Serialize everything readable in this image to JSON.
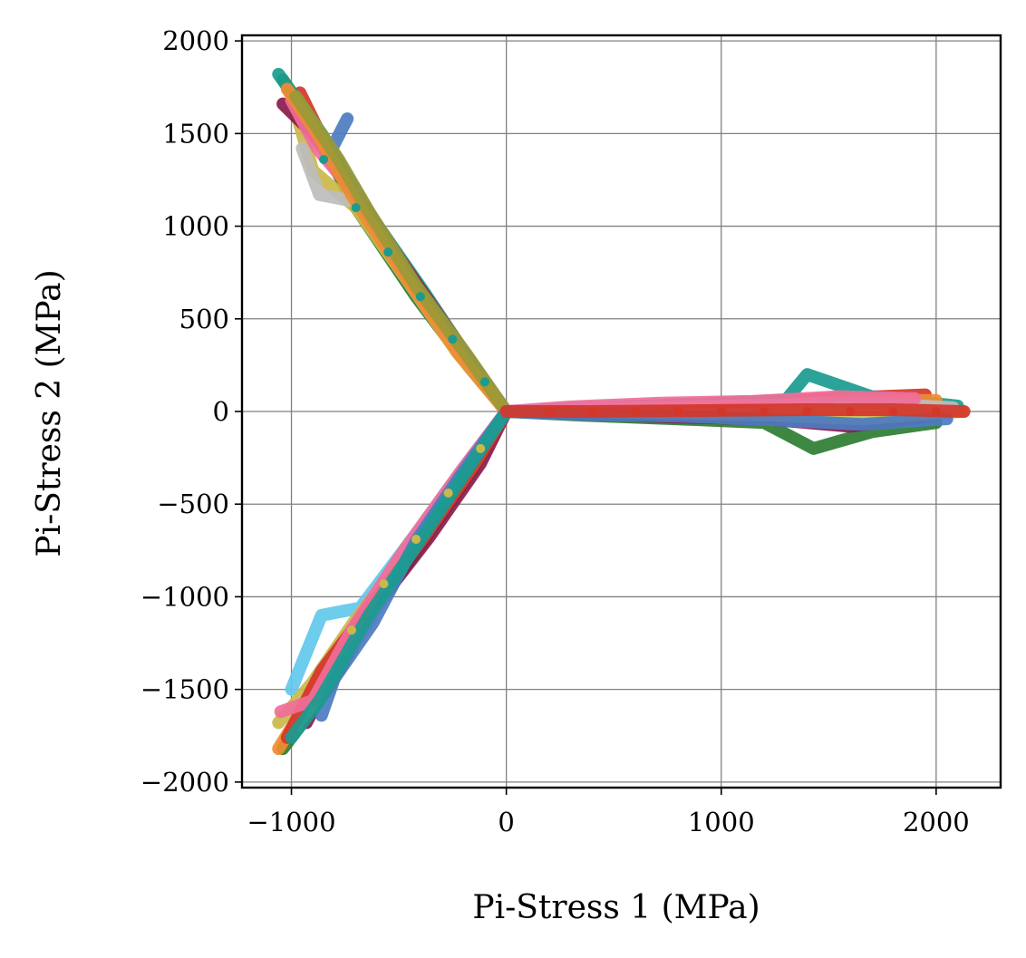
{
  "chart_data": {
    "type": "line",
    "title": "",
    "xlabel": "Pi-Stress 1 (MPa)",
    "ylabel": "Pi-Stress 2 (MPa)",
    "xlim": [
      -1230,
      2300
    ],
    "ylim": [
      -2030,
      2030
    ],
    "grid": true,
    "grid_color": "#808080",
    "x_ticks": [
      {
        "value": -1000,
        "label": "−1000"
      },
      {
        "value": 0,
        "label": "0"
      },
      {
        "value": 1000,
        "label": "1000"
      },
      {
        "value": 2000,
        "label": "2000"
      }
    ],
    "y_ticks": [
      {
        "value": 2000,
        "label": "2000"
      },
      {
        "value": 1500,
        "label": "1500"
      },
      {
        "value": 1000,
        "label": "1000"
      },
      {
        "value": 500,
        "label": "500"
      },
      {
        "value": 0,
        "label": "0"
      },
      {
        "value": -500,
        "label": "−500"
      },
      {
        "value": -1000,
        "label": "−1000"
      },
      {
        "value": -1500,
        "label": "−1500"
      },
      {
        "value": -2000,
        "label": "−2000"
      }
    ],
    "series": [
      {
        "name": "path-1",
        "color": "#2e7d32",
        "lobe": "upper-left",
        "points": [
          [
            0,
            0
          ],
          [
            -180,
            250
          ],
          [
            -420,
            620
          ],
          [
            -700,
            1100
          ],
          [
            -880,
            1500
          ],
          [
            -1040,
            1790
          ]
        ]
      },
      {
        "name": "path-2",
        "color": "#d4362a",
        "lobe": "upper-left",
        "points": [
          [
            0,
            0
          ],
          [
            -200,
            290
          ],
          [
            -430,
            700
          ],
          [
            -640,
            1060
          ],
          [
            -850,
            1460
          ],
          [
            -960,
            1720
          ]
        ]
      },
      {
        "name": "path-3",
        "color": "#1a9b8f",
        "lobe": "upper-left",
        "points": [
          [
            0,
            0
          ],
          [
            -150,
            240
          ],
          [
            -380,
            640
          ],
          [
            -620,
            1040
          ],
          [
            -860,
            1500
          ],
          [
            -1060,
            1820
          ]
        ]
      },
      {
        "name": "path-4",
        "color": "#cbb84a",
        "lobe": "upper-left",
        "points": [
          [
            0,
            0
          ],
          [
            -230,
            320
          ],
          [
            -480,
            740
          ],
          [
            -700,
            1100
          ],
          [
            -900,
            1300
          ],
          [
            -980,
            1620
          ]
        ]
      },
      {
        "name": "path-5",
        "color": "#8a1a4a",
        "lobe": "upper-left",
        "points": [
          [
            0,
            0
          ],
          [
            -170,
            280
          ],
          [
            -400,
            660
          ],
          [
            -660,
            1100
          ],
          [
            -900,
            1500
          ],
          [
            -1040,
            1660
          ]
        ]
      },
      {
        "name": "path-6",
        "color": "#f06e9a",
        "lobe": "upper-left",
        "points": [
          [
            0,
            0
          ],
          [
            -210,
            300
          ],
          [
            -460,
            720
          ],
          [
            -720,
            1200
          ],
          [
            -880,
            1420
          ],
          [
            -1000,
            1680
          ]
        ]
      },
      {
        "name": "path-7",
        "color": "#bdbdbd",
        "lobe": "upper-left",
        "points": [
          [
            0,
            0
          ],
          [
            -190,
            270
          ],
          [
            -440,
            690
          ],
          [
            -690,
            1130
          ],
          [
            -870,
            1170
          ],
          [
            -950,
            1420
          ]
        ]
      },
      {
        "name": "path-8",
        "color": "#4c7cc0",
        "lobe": "upper-left",
        "points": [
          [
            0,
            0
          ],
          [
            -160,
            260
          ],
          [
            -410,
            650
          ],
          [
            -650,
            1080
          ],
          [
            -820,
            1400
          ],
          [
            -740,
            1580
          ]
        ]
      },
      {
        "name": "path-9",
        "color": "#f28b30",
        "lobe": "upper-left",
        "points": [
          [
            0,
            0
          ],
          [
            -220,
            310
          ],
          [
            -470,
            730
          ],
          [
            -710,
            1150
          ],
          [
            -890,
            1520
          ],
          [
            -1020,
            1740
          ]
        ]
      },
      {
        "name": "path-10",
        "color": "#9a9a35",
        "lobe": "upper-left",
        "points": [
          [
            0,
            0
          ],
          [
            -180,
            300
          ],
          [
            -420,
            680
          ],
          [
            -640,
            1080
          ],
          [
            -780,
            1360
          ],
          [
            -980,
            1700
          ]
        ]
      },
      {
        "name": "path-11",
        "color": "#2e7d32",
        "lobe": "lower-left",
        "points": [
          [
            0,
            0
          ],
          [
            -150,
            -300
          ],
          [
            -400,
            -720
          ],
          [
            -620,
            -1080
          ],
          [
            -820,
            -1480
          ],
          [
            -1040,
            -1820
          ]
        ]
      },
      {
        "name": "path-12",
        "color": "#62c8ea",
        "lobe": "lower-left",
        "points": [
          [
            0,
            0
          ],
          [
            -170,
            -260
          ],
          [
            -420,
            -660
          ],
          [
            -680,
            -1060
          ],
          [
            -860,
            -1100
          ],
          [
            -1000,
            -1500
          ]
        ]
      },
      {
        "name": "path-13",
        "color": "#cbb84a",
        "lobe": "lower-left",
        "points": [
          [
            0,
            0
          ],
          [
            -200,
            -330
          ],
          [
            -450,
            -750
          ],
          [
            -700,
            -1120
          ],
          [
            -900,
            -1460
          ],
          [
            -1060,
            -1680
          ]
        ]
      },
      {
        "name": "path-14",
        "color": "#8a1a4a",
        "lobe": "lower-left",
        "points": [
          [
            0,
            0
          ],
          [
            -120,
            -280
          ],
          [
            -360,
            -680
          ],
          [
            -600,
            -1040
          ],
          [
            -760,
            -1300
          ],
          [
            -930,
            -1680
          ]
        ]
      },
      {
        "name": "path-15",
        "color": "#f28b30",
        "lobe": "lower-left",
        "points": [
          [
            0,
            0
          ],
          [
            -160,
            -300
          ],
          [
            -410,
            -710
          ],
          [
            -660,
            -1110
          ],
          [
            -880,
            -1480
          ],
          [
            -1060,
            -1820
          ]
        ]
      },
      {
        "name": "path-16",
        "color": "#bdbdbd",
        "lobe": "lower-left",
        "points": [
          [
            0,
            0
          ],
          [
            -190,
            -310
          ],
          [
            -430,
            -720
          ],
          [
            -650,
            -1150
          ],
          [
            -850,
            -1500
          ],
          [
            -980,
            -1700
          ]
        ]
      },
      {
        "name": "path-17",
        "color": "#d4362a",
        "lobe": "lower-left",
        "points": [
          [
            0,
            0
          ],
          [
            -140,
            -270
          ],
          [
            -390,
            -690
          ],
          [
            -640,
            -1060
          ],
          [
            -860,
            -1400
          ],
          [
            -1020,
            -1760
          ]
        ]
      },
      {
        "name": "path-18",
        "color": "#f06e9a",
        "lobe": "lower-left",
        "points": [
          [
            0,
            0
          ],
          [
            -210,
            -320
          ],
          [
            -470,
            -740
          ],
          [
            -720,
            -1180
          ],
          [
            -900,
            -1560
          ],
          [
            -1050,
            -1620
          ]
        ]
      },
      {
        "name": "path-19",
        "color": "#4c7cc0",
        "lobe": "lower-left",
        "points": [
          [
            0,
            0
          ],
          [
            -180,
            -290
          ],
          [
            -420,
            -700
          ],
          [
            -620,
            -1140
          ],
          [
            -800,
            -1440
          ],
          [
            -860,
            -1640
          ]
        ]
      },
      {
        "name": "path-20",
        "color": "#1a9b8f",
        "lobe": "lower-left",
        "points": [
          [
            0,
            0
          ],
          [
            -150,
            -260
          ],
          [
            -380,
            -660
          ],
          [
            -640,
            -1100
          ],
          [
            -870,
            -1560
          ],
          [
            -1000,
            -1760
          ]
        ]
      },
      {
        "name": "path-21",
        "color": "#d4362a",
        "lobe": "right",
        "points": [
          [
            0,
            0
          ],
          [
            300,
            0
          ],
          [
            700,
            10
          ],
          [
            1100,
            40
          ],
          [
            1500,
            70
          ],
          [
            1950,
            90
          ]
        ]
      },
      {
        "name": "path-22",
        "color": "#2e7d32",
        "lobe": "right",
        "points": [
          [
            0,
            0
          ],
          [
            350,
            -20
          ],
          [
            800,
            -40
          ],
          [
            1200,
            -60
          ],
          [
            1430,
            -200
          ],
          [
            1700,
            -110
          ],
          [
            2000,
            -60
          ]
        ]
      },
      {
        "name": "path-23",
        "color": "#1a9b8f",
        "lobe": "right",
        "points": [
          [
            0,
            0
          ],
          [
            400,
            20
          ],
          [
            900,
            40
          ],
          [
            1300,
            60
          ],
          [
            1400,
            200
          ],
          [
            1700,
            80
          ],
          [
            2100,
            30
          ]
        ]
      },
      {
        "name": "path-24",
        "color": "#f28b30",
        "lobe": "right",
        "points": [
          [
            0,
            0
          ],
          [
            300,
            10
          ],
          [
            750,
            20
          ],
          [
            1200,
            30
          ],
          [
            1600,
            60
          ],
          [
            2000,
            60
          ]
        ]
      },
      {
        "name": "path-25",
        "color": "#8a1a4a",
        "lobe": "right",
        "points": [
          [
            0,
            0
          ],
          [
            320,
            -10
          ],
          [
            780,
            -30
          ],
          [
            1200,
            -40
          ],
          [
            1600,
            -80
          ],
          [
            2000,
            -20
          ]
        ]
      },
      {
        "name": "path-26",
        "color": "#cbb84a",
        "lobe": "right",
        "points": [
          [
            0,
            0
          ],
          [
            350,
            0
          ],
          [
            820,
            -10
          ],
          [
            1250,
            -20
          ],
          [
            1650,
            -40
          ],
          [
            2120,
            0
          ]
        ]
      },
      {
        "name": "path-27",
        "color": "#bdbdbd",
        "lobe": "right",
        "points": [
          [
            0,
            0
          ],
          [
            380,
            15
          ],
          [
            850,
            25
          ],
          [
            1300,
            35
          ],
          [
            1700,
            45
          ],
          [
            2080,
            20
          ]
        ]
      },
      {
        "name": "path-28",
        "color": "#f06e9a",
        "lobe": "right",
        "points": [
          [
            0,
            0
          ],
          [
            300,
            25
          ],
          [
            720,
            45
          ],
          [
            1150,
            55
          ],
          [
            1550,
            80
          ],
          [
            1900,
            70
          ]
        ]
      },
      {
        "name": "path-29",
        "color": "#4c7cc0",
        "lobe": "right",
        "points": [
          [
            0,
            0
          ],
          [
            340,
            -15
          ],
          [
            800,
            -25
          ],
          [
            1250,
            -45
          ],
          [
            1650,
            -70
          ],
          [
            2050,
            -40
          ]
        ]
      },
      {
        "name": "path-30",
        "color": "#d4362a",
        "lobe": "right",
        "points": [
          [
            0,
            0
          ],
          [
            400,
            0
          ],
          [
            900,
            5
          ],
          [
            1400,
            10
          ],
          [
            1800,
            10
          ],
          [
            2130,
            0
          ]
        ]
      }
    ],
    "marker_points": [
      {
        "color": "#d4362a",
        "points": [
          [
            200,
            0
          ],
          [
            400,
            0
          ],
          [
            600,
            0
          ],
          [
            800,
            0
          ],
          [
            1000,
            0
          ],
          [
            1200,
            0
          ],
          [
            1400,
            0
          ],
          [
            1600,
            0
          ],
          [
            1800,
            0
          ],
          [
            2000,
            0
          ]
        ]
      },
      {
        "color": "#1a9b8f",
        "points": [
          [
            -100,
            160
          ],
          [
            -250,
            390
          ],
          [
            -400,
            620
          ],
          [
            -550,
            860
          ],
          [
            -700,
            1100
          ],
          [
            -850,
            1360
          ]
        ]
      },
      {
        "color": "#cbb84a",
        "points": [
          [
            -120,
            -200
          ],
          [
            -270,
            -440
          ],
          [
            -420,
            -690
          ],
          [
            -570,
            -930
          ],
          [
            -720,
            -1180
          ]
        ]
      }
    ]
  }
}
